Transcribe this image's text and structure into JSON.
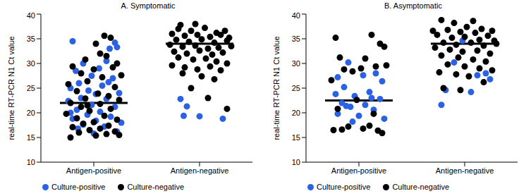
{
  "chart_data": [
    {
      "type": "scatter",
      "title": "A. Symptomatic",
      "y_label": "real-time RT-PCR N1 Ct value",
      "xlim": [
        0,
        2
      ],
      "xticks": [
        {
          "value": 0.5,
          "label": "Antigen-positive"
        },
        {
          "value": 1.5,
          "label": "Antigen-negative"
        }
      ],
      "ylim": [
        10,
        40
      ],
      "yticks": [
        10,
        15,
        20,
        25,
        30,
        35,
        40
      ],
      "grid": false,
      "legend": "bottom",
      "medians": [
        22,
        34
      ],
      "series": [
        {
          "name": "Culture-positive",
          "color": "#2b62e3",
          "marker": "circle",
          "x": [
            0.3,
            0.7,
            0.72,
            0.65,
            0.4,
            0.62,
            0.55,
            0.33,
            0.48,
            0.68,
            0.36,
            0.58,
            0.28,
            0.45,
            0.74,
            0.52,
            0.38,
            0.62,
            0.26,
            0.48,
            0.7,
            0.34,
            0.56,
            0.44,
            0.66,
            0.3,
            0.52,
            0.76,
            0.4,
            0.6,
            0.35,
            0.72,
            0.5,
            0.28,
            0.64,
            1.32,
            1.38,
            1.35,
            1.5,
            1.72
          ],
          "values": [
            34.5,
            34.2,
            33.3,
            33.0,
            30.0,
            30.5,
            29.0,
            28.5,
            27.5,
            27.0,
            26.0,
            25.5,
            25.0,
            24.5,
            24.0,
            23.8,
            23.0,
            22.8,
            22.4,
            21.6,
            21.2,
            20.6,
            20.2,
            19.6,
            19.2,
            18.8,
            18.4,
            18.0,
            17.6,
            17.2,
            16.8,
            16.2,
            15.8,
            20.0,
            26.2,
            22.8,
            21.3,
            19.4,
            19.3,
            18.8
          ]
        },
        {
          "name": "Culture-negative",
          "color": "#000000",
          "marker": "circle",
          "x": [
            0.6,
            0.66,
            0.52,
            0.56,
            0.62,
            0.42,
            0.72,
            0.3,
            0.5,
            0.38,
            0.76,
            0.58,
            0.44,
            0.26,
            0.7,
            0.34,
            0.54,
            0.64,
            0.42,
            0.74,
            0.28,
            0.56,
            0.38,
            0.66,
            0.46,
            0.24,
            0.6,
            0.34,
            0.72,
            0.5,
            0.4,
            0.64,
            0.3,
            0.56,
            0.46,
            0.7,
            0.36,
            0.62,
            0.52,
            0.28,
            0.74,
            0.44,
            0.68,
            1.3,
            1.42,
            1.55,
            1.66,
            1.74,
            1.24,
            1.36,
            1.48,
            1.6,
            1.7,
            1.78,
            1.28,
            1.4,
            1.52,
            1.64,
            1.76,
            1.22,
            1.34,
            1.46,
            1.58,
            1.68,
            1.8,
            1.26,
            1.38,
            1.5,
            1.62,
            1.72,
            1.3,
            1.44,
            1.56,
            1.66,
            1.76,
            1.24,
            1.36,
            1.48,
            1.6,
            1.7,
            1.34,
            1.52,
            1.64,
            1.42,
            1.58,
            1.76,
            1.46,
            1.32
          ],
          "values": [
            35.6,
            35.2,
            34.0,
            32.0,
            31.5,
            30.8,
            30.0,
            29.4,
            28.8,
            28.0,
            27.6,
            27.2,
            26.4,
            25.8,
            25.2,
            24.4,
            23.9,
            23.4,
            22.9,
            22.6,
            22.0,
            21.8,
            21.2,
            20.8,
            20.4,
            19.8,
            19.4,
            18.9,
            18.6,
            18.1,
            17.8,
            17.4,
            17.1,
            16.8,
            16.5,
            16.2,
            16.0,
            15.7,
            15.4,
            15.0,
            15.5,
            21.5,
            29.2,
            37.0,
            36.6,
            37.2,
            36.2,
            36.6,
            36.0,
            35.6,
            35.8,
            35.4,
            35.8,
            35.2,
            34.8,
            34.4,
            34.9,
            34.2,
            34.6,
            33.8,
            33.4,
            33.6,
            33.0,
            33.2,
            33.5,
            32.4,
            32.0,
            32.6,
            31.8,
            32.2,
            31.2,
            30.8,
            31.0,
            30.4,
            30.0,
            29.6,
            29.2,
            28.8,
            29.4,
            28.6,
            28.0,
            27.4,
            26.8,
            25.0,
            23.0,
            20.8,
            38.0,
            37.8
          ]
        }
      ]
    },
    {
      "type": "scatter",
      "title": "B. Asymptomatic",
      "y_label": "real-time RT-PCR N1 Ct value",
      "xlim": [
        0,
        2
      ],
      "xticks": [
        {
          "value": 0.5,
          "label": "Antigen-positive"
        },
        {
          "value": 1.5,
          "label": "Antigen-negative"
        }
      ],
      "ylim": [
        10,
        40
      ],
      "yticks": [
        10,
        15,
        20,
        25,
        30,
        35,
        40
      ],
      "grid": false,
      "legend": "bottom",
      "medians": [
        22.5,
        34
      ],
      "series": [
        {
          "name": "Culture-positive",
          "color": "#2b62e3",
          "marker": "circle",
          "x": [
            0.4,
            0.66,
            0.3,
            0.54,
            0.72,
            0.36,
            0.6,
            0.28,
            0.46,
            0.7,
            0.34,
            0.56,
            0.42,
            0.64,
            0.3,
            0.5,
            0.74,
            0.38,
            0.62,
            0.44,
            1.4,
            1.7,
            1.62,
            1.74,
            1.32,
            1.56,
            1.28,
            1.48
          ],
          "values": [
            30.2,
            28.0,
            27.2,
            27.6,
            26.4,
            25.2,
            24.2,
            23.8,
            23.4,
            22.8,
            22.0,
            21.6,
            21.2,
            20.6,
            19.8,
            19.4,
            18.8,
            21.4,
            23.0,
            18.2,
            30.2,
            28.0,
            27.6,
            26.8,
            24.6,
            24.2,
            21.6,
            34.6
          ]
        },
        {
          "name": "Culture-negative",
          "color": "#000000",
          "marker": "circle",
          "x": [
            0.28,
            0.62,
            0.32,
            0.56,
            0.7,
            0.74,
            0.44,
            0.66,
            0.52,
            0.36,
            0.76,
            0.24,
            0.48,
            0.3,
            0.64,
            0.4,
            0.34,
            0.54,
            0.6,
            0.68,
            0.72,
            0.26,
            1.28,
            1.4,
            1.52,
            1.66,
            1.76,
            1.34,
            1.46,
            1.6,
            1.72,
            1.24,
            1.38,
            1.5,
            1.64,
            1.78,
            1.3,
            1.42,
            1.56,
            1.68,
            1.22,
            1.36,
            1.48,
            1.62,
            1.74,
            1.28,
            1.44,
            1.58,
            1.7,
            1.34,
            1.5,
            1.64,
            1.76,
            1.26,
            1.42,
            1.54,
            1.68,
            1.3,
            1.46,
            1.8,
            1.2,
            1.58
          ],
          "values": [
            35.2,
            35.8,
            31.2,
            31.0,
            34.0,
            33.4,
            28.4,
            29.4,
            29.0,
            28.8,
            29.6,
            26.6,
            22.6,
            20.8,
            19.8,
            17.2,
            16.6,
            16.8,
            17.4,
            16.4,
            15.9,
            16.5,
            38.8,
            38.2,
            37.4,
            37.0,
            36.6,
            36.8,
            36.4,
            36.2,
            35.6,
            35.8,
            35.2,
            35.4,
            34.8,
            34.6,
            34.2,
            33.8,
            34.2,
            33.6,
            33.2,
            32.8,
            32.4,
            32.6,
            32.0,
            31.6,
            31.2,
            30.8,
            30.4,
            29.8,
            29.4,
            29.0,
            28.6,
            28.2,
            27.8,
            27.4,
            26.2,
            25.0,
            24.6,
            34.0,
            36.6,
            38.6
          ]
        }
      ]
    }
  ]
}
